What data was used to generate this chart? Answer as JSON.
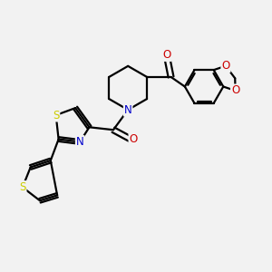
{
  "bg_color": "#f2f2f2",
  "bond_color": "#000000",
  "bond_width": 1.6,
  "atom_colors": {
    "N": "#0000cc",
    "O": "#cc0000",
    "S": "#cccc00"
  },
  "font_size": 8.5
}
